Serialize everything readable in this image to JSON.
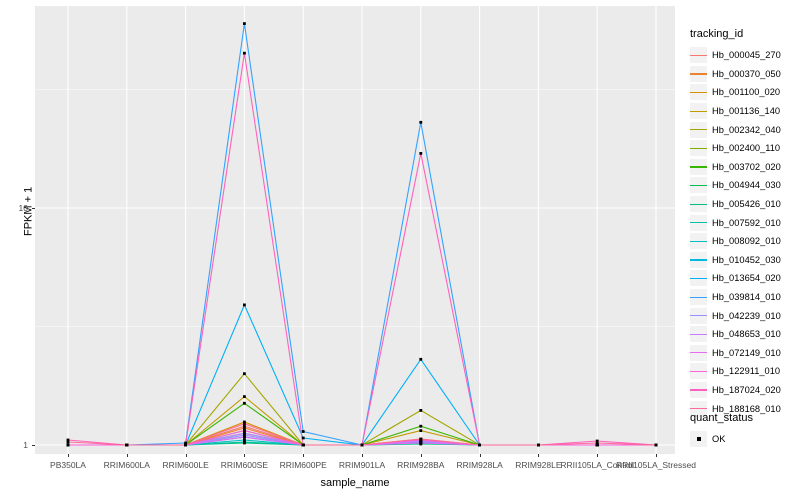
{
  "figure": {
    "y_axis": {
      "title": "FPKM + 1",
      "scale": "log10",
      "tick_labels": [
        "1",
        "10"
      ]
    },
    "x_axis": {
      "title": "sample_name"
    },
    "legend": {
      "tracking_title": "tracking_id",
      "quant_title": "quant_status",
      "quant_ok_label": "OK"
    }
  },
  "colors": {
    "panel_bg": "#EBEBEB",
    "grid": "#FFFFFF",
    "axis_text": "#4D4D4D",
    "tick_mark": "#333333",
    "legend_key_bg": "#F2F2F2",
    "marker": "#000000",
    "figure_bg": "#FFFFFF"
  },
  "chart_data": {
    "type": "line",
    "title": "",
    "xlabel": "sample_name",
    "ylabel": "FPKM + 1",
    "yscale": "log10",
    "yticks": [
      1,
      10
    ],
    "yminorticks": [
      3.162,
      31.62
    ],
    "ylim": [
      0.95,
      71
    ],
    "grid": true,
    "legend_position": "right",
    "marker": "black-square",
    "marker_legend": {
      "title": "quant_status",
      "items": [
        "OK"
      ]
    },
    "categories": [
      "PB350LA",
      "RRIM600LA",
      "RRIM600LE",
      "RRIM600SE",
      "RRIM600PE",
      "RRIM901LA",
      "RRIM928BA",
      "RRIM928LA",
      "RRIM928LE",
      "RRII105LA_Control",
      "RRII105LA_Stressed"
    ],
    "series": [
      {
        "name": "Hb_000045_270",
        "color": "#F8766D",
        "values": [
          1,
          1,
          1,
          1.2,
          1,
          1,
          1.05,
          1,
          1,
          1,
          1
        ]
      },
      {
        "name": "Hb_000370_050",
        "color": "#EA8331",
        "values": [
          1,
          1,
          1,
          1.18,
          1,
          1,
          1.04,
          1,
          1,
          1,
          1
        ]
      },
      {
        "name": "Hb_001100_020",
        "color": "#D89000",
        "values": [
          1,
          1,
          1,
          1.25,
          1,
          1,
          1.06,
          1,
          1,
          1,
          1
        ]
      },
      {
        "name": "Hb_001136_140",
        "color": "#C09B00",
        "values": [
          1,
          1,
          1,
          1.6,
          1,
          1,
          1.15,
          1,
          1,
          1,
          1
        ]
      },
      {
        "name": "Hb_002342_040",
        "color": "#A3A500",
        "values": [
          1,
          1,
          1,
          2.0,
          1,
          1,
          1.4,
          1,
          1,
          1,
          1
        ]
      },
      {
        "name": "Hb_002400_110",
        "color": "#7CAE00",
        "values": [
          1,
          1,
          1,
          1.15,
          1,
          1,
          1.03,
          1,
          1,
          1,
          1
        ]
      },
      {
        "name": "Hb_003702_020",
        "color": "#39B600",
        "values": [
          1,
          1,
          1,
          1.5,
          1,
          1,
          1.2,
          1,
          1,
          1,
          1
        ]
      },
      {
        "name": "Hb_004944_030",
        "color": "#00BB4E",
        "values": [
          1,
          1,
          1,
          1.12,
          1,
          1,
          1.03,
          1,
          1,
          1,
          1
        ]
      },
      {
        "name": "Hb_005426_010",
        "color": "#00BF7D",
        "values": [
          1,
          1,
          1,
          1.02,
          1,
          1,
          1.01,
          1,
          1,
          1,
          1
        ]
      },
      {
        "name": "Hb_007592_010",
        "color": "#00C1A3",
        "values": [
          1,
          1,
          1,
          1.03,
          1,
          1,
          1.02,
          1,
          1,
          1,
          1
        ]
      },
      {
        "name": "Hb_008092_010",
        "color": "#00BFC4",
        "values": [
          1,
          1,
          1,
          1.05,
          1,
          1,
          1.02,
          1,
          1,
          1,
          1
        ]
      },
      {
        "name": "Hb_010452_030",
        "color": "#00BAE0",
        "values": [
          1,
          1,
          1,
          1.08,
          1,
          1,
          1.04,
          1,
          1,
          1,
          1
        ]
      },
      {
        "name": "Hb_013654_020",
        "color": "#00B0F6",
        "values": [
          1,
          1,
          1,
          3.9,
          1.07,
          1,
          2.3,
          1,
          1,
          1,
          1
        ]
      },
      {
        "name": "Hb_039814_010",
        "color": "#35A2FF",
        "values": [
          1,
          1,
          1.02,
          60.0,
          1.14,
          1,
          23.0,
          1,
          1,
          1,
          1
        ]
      },
      {
        "name": "Hb_042239_010",
        "color": "#9590FF",
        "values": [
          1,
          1,
          1,
          1.1,
          1,
          1,
          1.03,
          1,
          1,
          1,
          1
        ]
      },
      {
        "name": "Hb_048653_010",
        "color": "#C77CFF",
        "values": [
          1,
          1,
          1,
          1.12,
          1,
          1,
          1.04,
          1,
          1,
          1,
          1
        ]
      },
      {
        "name": "Hb_072149_010",
        "color": "#E76BF3",
        "values": [
          1,
          1,
          1,
          1.08,
          1,
          1,
          1.02,
          1,
          1,
          1,
          1
        ]
      },
      {
        "name": "Hb_122911_010",
        "color": "#FA62DB",
        "values": [
          1,
          1,
          1,
          1.15,
          1,
          1,
          1.05,
          1,
          1,
          1,
          1
        ]
      },
      {
        "name": "Hb_187024_020",
        "color": "#FF62BC",
        "values": [
          1.05,
          1,
          1,
          45.0,
          1,
          1,
          17.0,
          1,
          1,
          1.04,
          1
        ]
      },
      {
        "name": "Hb_188168_010",
        "color": "#FF6A98",
        "values": [
          1.03,
          1,
          1,
          1.23,
          1,
          1,
          1.06,
          1,
          1,
          1.02,
          1
        ]
      }
    ]
  }
}
